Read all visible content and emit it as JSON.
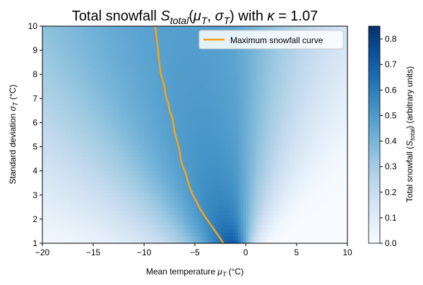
{
  "chart_data": {
    "type": "heatmap",
    "title": {
      "prefix": "Total snowfall ",
      "sym": "S",
      "sym_sub": "total",
      "args_prefix": "(",
      "arg1": "μ",
      "arg1_sub": "T",
      "sep": ", ",
      "arg2": "σ",
      "arg2_sub": "T",
      "args_suffix": ")",
      "with_text": " with ",
      "param": "κ",
      "param_value": " = 1.07"
    },
    "xlabel": {
      "text": "Mean temperature ",
      "sym": "μ",
      "sub": "T",
      "unit": " (°C)"
    },
    "ylabel": {
      "text": "Standard deviation ",
      "sym": "σ",
      "sub": "T",
      "unit": " (°C)"
    },
    "colorbar_label": {
      "text": "Total snowfall (",
      "sym": "S",
      "sub": "total",
      "unit": ") (arbitrary units)"
    },
    "xlim": [
      -20,
      10
    ],
    "ylim": [
      1,
      10
    ],
    "x_ticks": [
      -20,
      -15,
      -10,
      -5,
      0,
      5,
      10
    ],
    "x_tick_labels": [
      "−20",
      "−15",
      "−10",
      "−5",
      "0",
      "5",
      "10"
    ],
    "y_ticks": [
      1,
      2,
      3,
      4,
      5,
      6,
      7,
      8,
      9,
      10
    ],
    "y_tick_labels": [
      "1",
      "2",
      "3",
      "4",
      "5",
      "6",
      "7",
      "8",
      "9",
      "10"
    ],
    "colorbar_range": [
      0,
      0.85
    ],
    "colorbar_ticks": [
      0.0,
      0.1,
      0.2,
      0.3,
      0.4,
      0.5,
      0.6,
      0.7,
      0.8
    ],
    "colorbar_tick_labels": [
      "0.0",
      "0.1",
      "0.2",
      "0.3",
      "0.4",
      "0.5",
      "0.6",
      "0.7",
      "0.8"
    ],
    "colormap": "Blues",
    "kappa": 1.07,
    "legend": {
      "position": "top-right",
      "label": "Maximum snowfall curve"
    },
    "max_curve": {
      "name": "Maximum snowfall curve",
      "color": "#f5a31a",
      "points": [
        [
          -2.2,
          1.0
        ],
        [
          -2.5,
          1.2
        ],
        [
          -3.0,
          1.5
        ],
        [
          -3.5,
          1.8
        ],
        [
          -4.0,
          2.1
        ],
        [
          -4.3,
          2.3
        ],
        [
          -4.6,
          2.5
        ],
        [
          -4.8,
          2.7
        ],
        [
          -5.2,
          3.0
        ],
        [
          -5.5,
          3.3
        ],
        [
          -5.7,
          3.6
        ],
        [
          -5.9,
          3.9
        ],
        [
          -6.2,
          4.2
        ],
        [
          -6.4,
          4.5
        ],
        [
          -6.5,
          4.8
        ],
        [
          -6.6,
          5.0
        ],
        [
          -6.8,
          5.3
        ],
        [
          -7.0,
          5.6
        ],
        [
          -7.1,
          5.9
        ],
        [
          -7.2,
          6.2
        ],
        [
          -7.5,
          6.5
        ],
        [
          -7.6,
          6.8
        ],
        [
          -7.8,
          7.0
        ],
        [
          -7.9,
          7.2
        ],
        [
          -8.0,
          7.5
        ],
        [
          -8.2,
          7.8
        ],
        [
          -8.4,
          8.1
        ],
        [
          -8.5,
          8.5
        ],
        [
          -8.6,
          8.9
        ],
        [
          -8.7,
          9.3
        ],
        [
          -8.8,
          9.6
        ],
        [
          -8.9,
          10.0
        ]
      ]
    }
  }
}
